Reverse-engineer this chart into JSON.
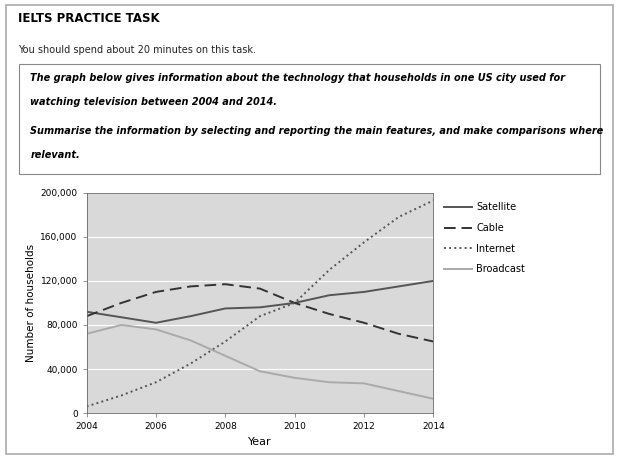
{
  "years": [
    2004,
    2005,
    2006,
    2007,
    2008,
    2009,
    2010,
    2011,
    2012,
    2013,
    2014
  ],
  "satellite": [
    92000,
    87000,
    82000,
    88000,
    95000,
    96000,
    100000,
    107000,
    110000,
    115000,
    120000
  ],
  "cable": [
    88000,
    100000,
    110000,
    115000,
    117000,
    113000,
    100000,
    90000,
    82000,
    72000,
    65000
  ],
  "internet": [
    6000,
    16000,
    28000,
    45000,
    65000,
    88000,
    100000,
    130000,
    155000,
    178000,
    193000
  ],
  "broadcast": [
    72000,
    80000,
    76000,
    66000,
    52000,
    38000,
    32000,
    28000,
    27000,
    20000,
    13000
  ],
  "ylabel": "Number of households",
  "xlabel": "Year",
  "ylim": [
    0,
    200000
  ],
  "yticks": [
    0,
    40000,
    80000,
    120000,
    160000,
    200000
  ],
  "ytick_labels": [
    "0",
    "40,000",
    "80,000",
    "120,000",
    "160,000",
    "200,000"
  ],
  "xticks": [
    2004,
    2006,
    2008,
    2010,
    2012,
    2014
  ],
  "bg_color": "#d9d9d9",
  "satellite_color": "#555555",
  "cable_color": "#333333",
  "internet_color": "#555555",
  "broadcast_color": "#aaaaaa",
  "header_title": "IELTS PRACTICE TASK",
  "header_subtitle": "You should spend about 20 minutes on this task.",
  "prompt_line1": "The graph below gives information about the technology that households in one US city used for",
  "prompt_line2": "watching television between 2004 and 2014.",
  "prompt_line3": "Summarise the information by selecting and reporting the main features, and make comparisons where",
  "prompt_line4": "relevant.",
  "outer_border_color": "#aaaaaa",
  "inner_box_color": "#888888"
}
